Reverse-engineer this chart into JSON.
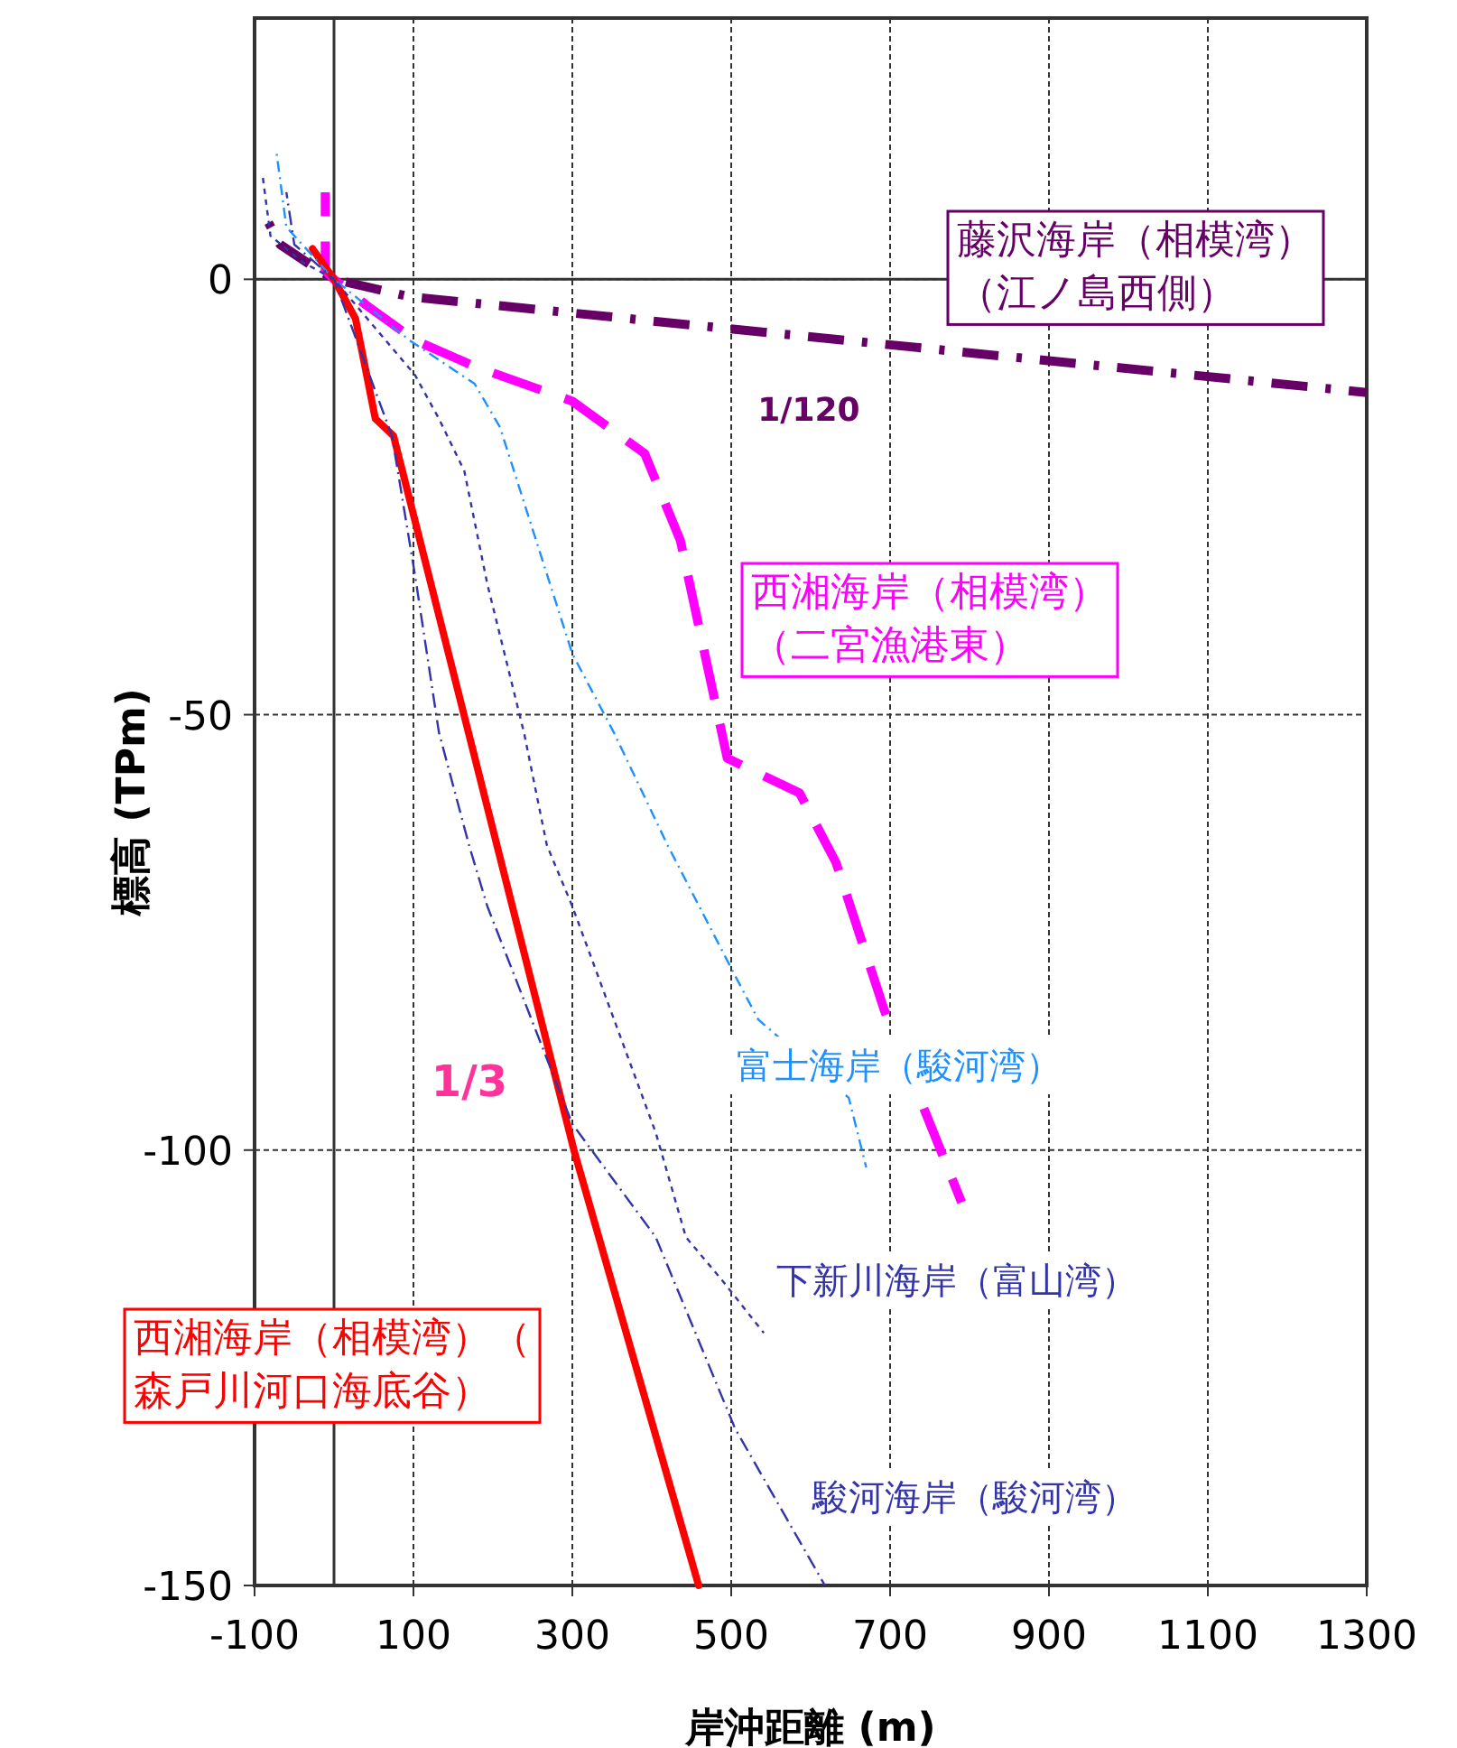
{
  "chart_data": {
    "type": "line",
    "xlabel": "岸沖距離 (m)",
    "ylabel": "標高 (TPm)",
    "xlim": [
      -100,
      1300
    ],
    "ylim": [
      -150,
      30
    ],
    "xticks": [
      -100,
      100,
      300,
      500,
      700,
      900,
      1100,
      1300
    ],
    "yticks": [
      -150,
      -100,
      -50,
      0
    ],
    "grid": true,
    "marker": "none",
    "series": [
      {
        "name": "藤沢海岸（相模湾）（江ノ島西側）",
        "color": "#660066",
        "line_style": "dashed",
        "x": [
          -91,
          -68,
          -27,
          0,
          95,
          1300
        ],
        "values": [
          8,
          4,
          1.5,
          0,
          -2,
          -13
        ]
      },
      {
        "name": "西湘海岸（相模湾）（二宮漁港東）",
        "color": "#ff00ff",
        "line_style": "dashed",
        "x": [
          -11,
          -11,
          0,
          41,
          102,
          177,
          300,
          391,
          436,
          495,
          586,
          632,
          693,
          790
        ],
        "values": [
          10,
          1,
          0,
          -3,
          -7,
          -10,
          -14,
          -20,
          -30,
          -55,
          -59,
          -67,
          -84,
          -106
        ]
      },
      {
        "name": "西湘海岸（相模湾）（森戸川河口海底谷）",
        "color": "#ff0000",
        "line_style": "solid",
        "x": [
          -27,
          0,
          27,
          52,
          75,
          302,
          459
        ],
        "values": [
          3.5,
          0,
          -4.5,
          -16,
          -18,
          -100,
          -150
        ]
      },
      {
        "name": "富士海岸（駿河湾）",
        "color": "#1e90ff",
        "line_style": "dotted",
        "x": [
          -73,
          -60,
          -20,
          0,
          95,
          177,
          209,
          300,
          352,
          420,
          505,
          534,
          648,
          670
        ],
        "values": [
          15,
          6,
          2,
          0,
          -7,
          -12,
          -17,
          -43,
          -52,
          -65,
          -80,
          -85,
          -94,
          -102
        ]
      },
      {
        "name": "下新川海岸（富山湾）",
        "color": "#3333aa",
        "line_style": "dotted",
        "x": [
          -90,
          -80,
          -40,
          0,
          102,
          132,
          164,
          193,
          239,
          268,
          300,
          405,
          443,
          489,
          541
        ],
        "values": [
          12,
          5,
          2,
          0,
          -11,
          -16,
          -22,
          -35,
          -52,
          -65,
          -72,
          -98,
          -110,
          -115,
          -121
        ]
      },
      {
        "name": "駿河海岸（駿河湾）",
        "color": "#3333aa",
        "line_style": "dashed",
        "x": [
          -60,
          -50,
          0,
          73,
          102,
          132,
          170,
          193,
          300,
          405,
          505,
          618
        ],
        "values": [
          10,
          4,
          0,
          -18,
          -34,
          -52,
          -65,
          -72,
          -97,
          -110,
          -132,
          -150
        ]
      }
    ],
    "annotations": [
      "1/120",
      "1/3"
    ]
  }
}
